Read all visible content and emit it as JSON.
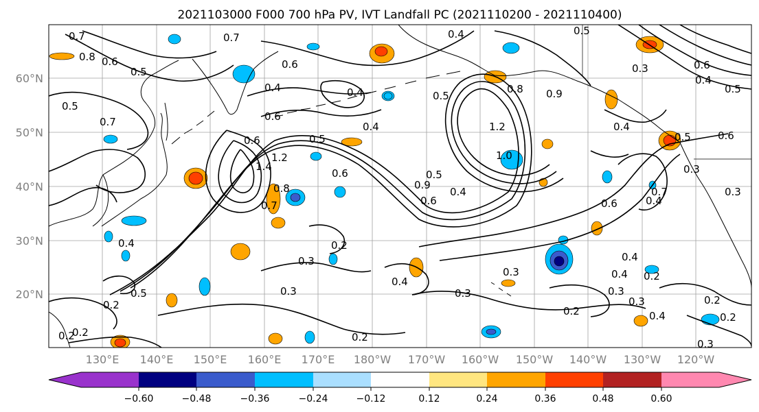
{
  "title": "2021103000 F000 700 hPa PV, IVT Landfall PC (2021110200 - 2021110400)",
  "map": {
    "lat_labels": [
      "60°N",
      "50°N",
      "40°N",
      "30°N",
      "20°N"
    ],
    "lon_labels": [
      "130°E",
      "140°E",
      "150°E",
      "160°E",
      "170°E",
      "180°W",
      "170°W",
      "160°W",
      "150°W",
      "140°W",
      "130°W",
      "120°W"
    ],
    "contour_labels": [
      "0.7",
      "0.8",
      "0.6",
      "0.5",
      "0.7",
      "0.6",
      "0.4",
      "0.4",
      "0.5",
      "0.3",
      "0.6",
      "0.5",
      "0.4",
      "0.5",
      "0.7",
      "0.6",
      "0.4",
      "0.5",
      "0.6",
      "0.4",
      "1.2",
      "1.0",
      "0.9",
      "0.8",
      "1.4",
      "1.2",
      "0.5",
      "0.6",
      "0.7",
      "0.8",
      "0.9",
      "0.5",
      "0.4",
      "0.6",
      "0.3",
      "0.2",
      "0.3",
      "0.4",
      "0.4",
      "0.6",
      "0.3",
      "0.4",
      "0.2",
      "0.3",
      "0.4",
      "0.5",
      "0.3",
      "0.2",
      "0.2",
      "0.5",
      "0.4",
      "0.3",
      "0.2",
      "0.2",
      "0.2",
      "0.3",
      "0.2",
      "0.4",
      "0.2",
      "0.3",
      "0.4",
      "0.3",
      "0.7",
      "0.6"
    ]
  },
  "colorbar": {
    "ticks": [
      "−0.60",
      "−0.48",
      "−0.36",
      "−0.24",
      "−0.12",
      "0.12",
      "0.24",
      "0.36",
      "0.48",
      "0.60"
    ],
    "colors": [
      "#9932cc",
      "#000080",
      "#3a5bcc",
      "#00bfff",
      "#aadfff",
      "#ffffff",
      "#ffe680",
      "#ffa500",
      "#ff4000",
      "#b22222",
      "#ff88b0"
    ]
  },
  "colors": {
    "negative_anomaly": "#00bfff",
    "positive_anomaly": "#ffa500"
  }
}
